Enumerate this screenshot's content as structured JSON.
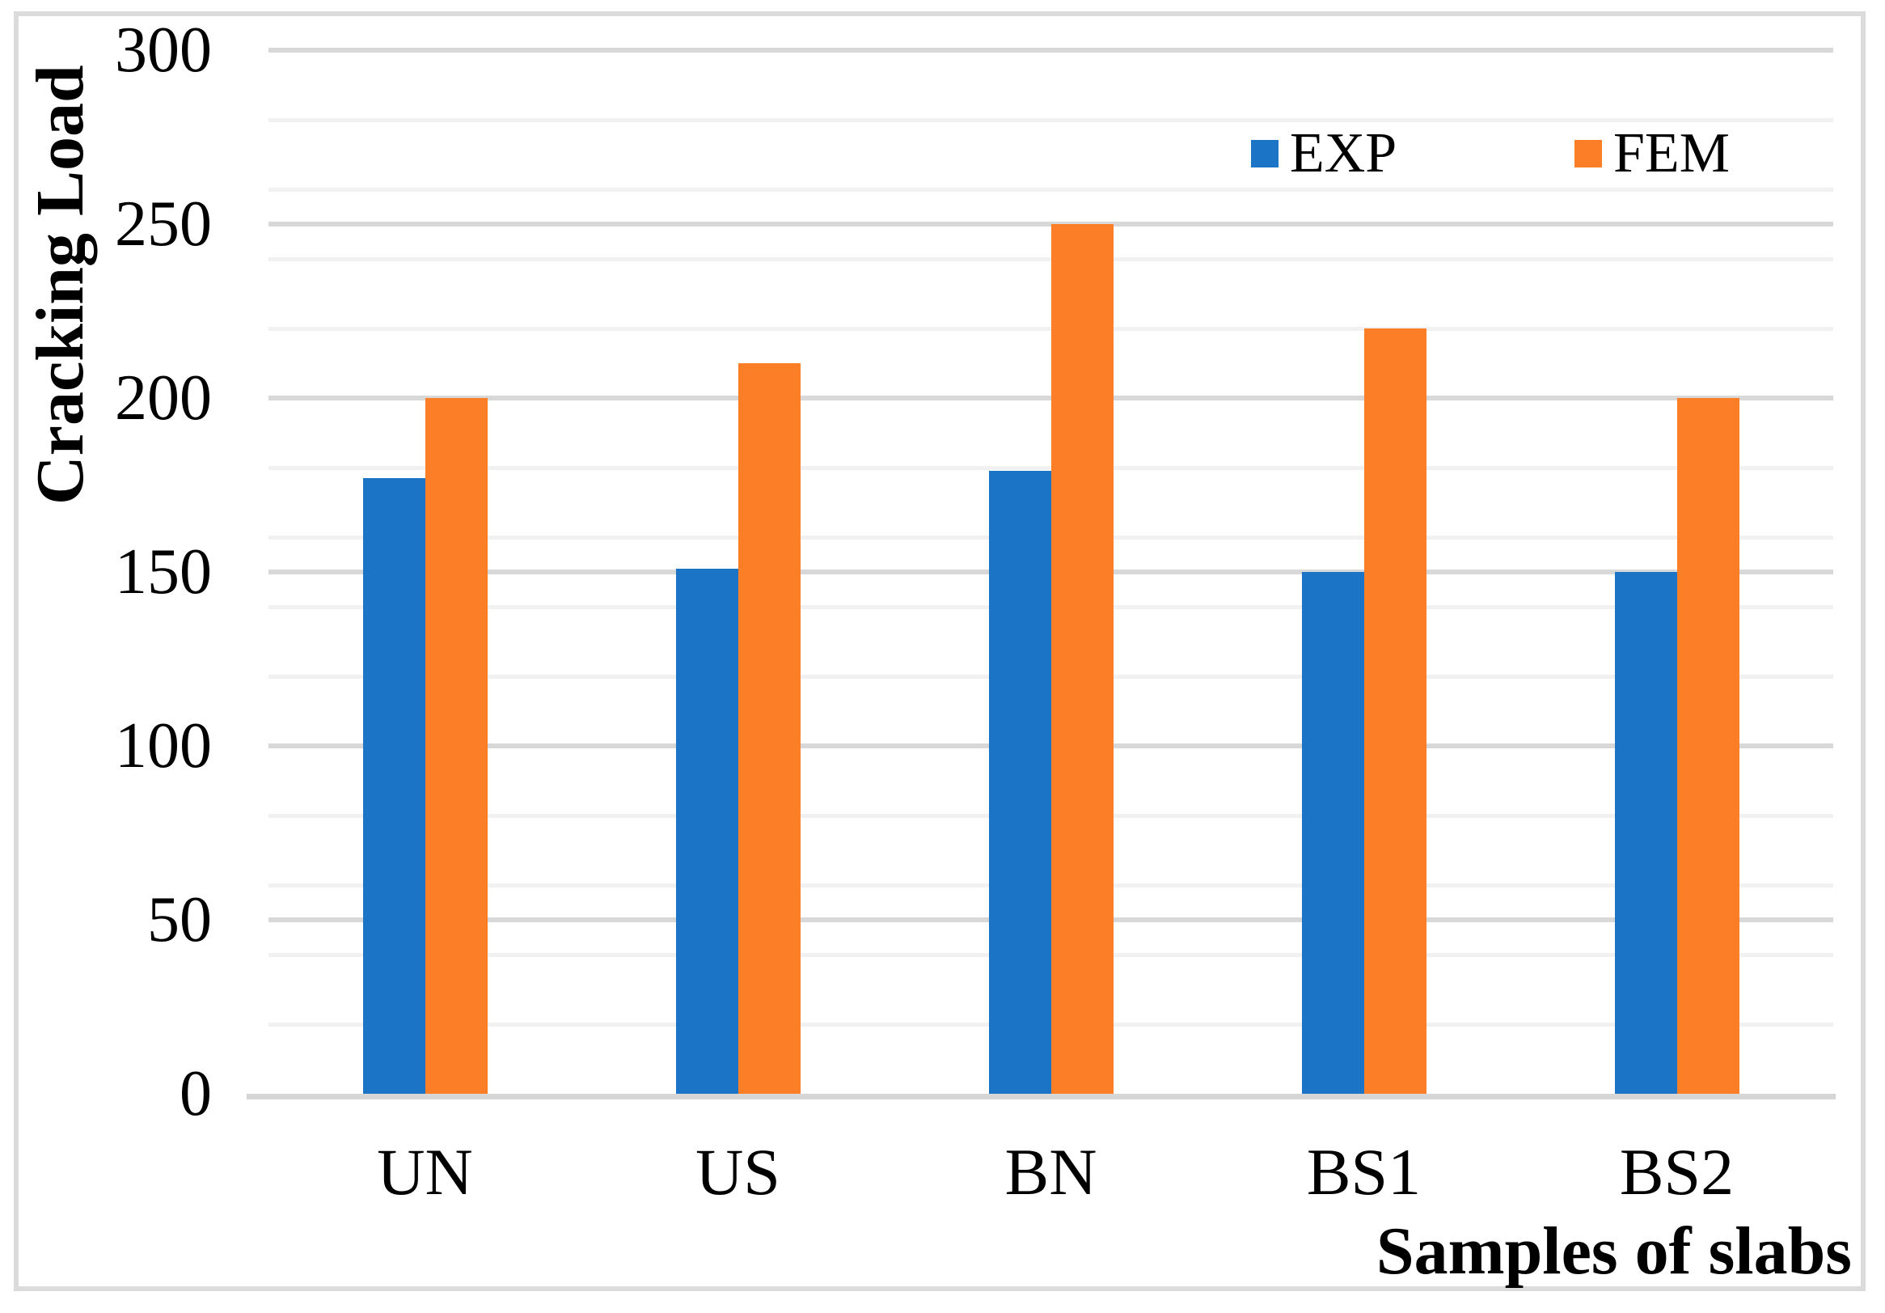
{
  "page": {
    "background_color": "#FFFFFF",
    "border_color": "#DBDBDB"
  },
  "chart_data": {
    "type": "bar",
    "title": "",
    "ylabel": "Cracking Load",
    "xlabel": "Samples of slabs",
    "categories": [
      "UN",
      "US",
      "BN",
      "BS1",
      "BS2"
    ],
    "series": [
      {
        "name": "EXP",
        "color": "#1B74C5",
        "values": [
          177,
          151,
          179,
          150,
          150
        ]
      },
      {
        "name": "FEM",
        "color": "#FC7E26",
        "values": [
          200,
          210,
          250,
          220,
          200
        ]
      }
    ],
    "ylim": [
      0,
      300
    ],
    "y_major_ticks": [
      0,
      50,
      100,
      150,
      200,
      250,
      300
    ],
    "y_tick_labels": [
      "0",
      "50",
      "100",
      "150",
      "200",
      "250",
      "300"
    ],
    "y_minor_step": 20,
    "grid": {
      "major_color": "#D8D8D8",
      "minor_color": "#F1F1F1",
      "axis_line_color": "#D6D6D6"
    },
    "legend": {
      "position": "top-right",
      "entries": [
        {
          "label": "EXP",
          "color": "#1B74C5"
        },
        {
          "label": "FEM",
          "color": "#FC7E26"
        }
      ]
    }
  }
}
